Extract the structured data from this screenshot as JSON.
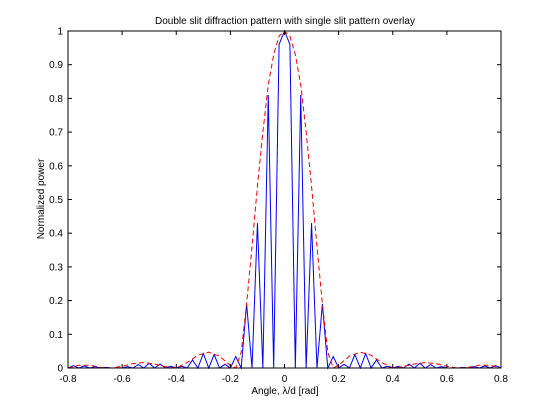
{
  "chart_data": {
    "type": "line",
    "title": "Double slit diffraction pattern with single slit pattern overlay",
    "xlabel": "Angle, λ/d [rad]",
    "ylabel": "Normalized power",
    "xlim": [
      -0.8,
      0.8
    ],
    "ylim": [
      0,
      1
    ],
    "xticks": [
      -0.8,
      -0.6,
      -0.4,
      -0.2,
      0,
      0.2,
      0.4,
      0.6,
      0.8
    ],
    "yticks": [
      0,
      0.1,
      0.2,
      0.3,
      0.4,
      0.5,
      0.6,
      0.7,
      0.8,
      0.9,
      1
    ],
    "xtick_labels": [
      "-0.8",
      "-0.6",
      "-0.4",
      "-0.2",
      "0",
      "0.2",
      "0.4",
      "0.6",
      "0.8"
    ],
    "ytick_labels": [
      "0",
      "0.1",
      "0.2",
      "0.3",
      "0.4",
      "0.5",
      "0.6",
      "0.7",
      "0.8",
      "0.9",
      "1"
    ],
    "grid": false,
    "legend": "none",
    "series": [
      {
        "style": "solid",
        "color": "#0000ff",
        "x": [
          -0.8,
          -0.78,
          -0.76,
          -0.74,
          -0.72,
          -0.7,
          -0.68,
          -0.66,
          -0.64,
          -0.62,
          -0.6,
          -0.58,
          -0.56,
          -0.54,
          -0.52,
          -0.5,
          -0.48,
          -0.46,
          -0.44,
          -0.42,
          -0.4,
          -0.38,
          -0.36,
          -0.34,
          -0.32,
          -0.3,
          -0.28,
          -0.26,
          -0.24,
          -0.22,
          -0.2,
          -0.18,
          -0.16,
          -0.14,
          -0.12,
          -0.1,
          -0.08,
          -0.06,
          -0.04,
          -0.02,
          0.0,
          0.02,
          0.04,
          0.06,
          0.08,
          0.1,
          0.12,
          0.14,
          0.16,
          0.18,
          0.2,
          0.22,
          0.24,
          0.26,
          0.28,
          0.3,
          0.32,
          0.34,
          0.36,
          0.38,
          0.4,
          0.42,
          0.44,
          0.46,
          0.48,
          0.5,
          0.52,
          0.54,
          0.56,
          0.58,
          0.6,
          0.62,
          0.64,
          0.66,
          0.68,
          0.7,
          0.72,
          0.74,
          0.76,
          0.78,
          0.8
        ],
        "y": [
          0.0,
          0.007,
          0.0,
          0.006,
          0.0,
          0.004,
          0.0,
          0.002,
          0.0,
          0.0,
          0.0,
          0.004,
          0.0,
          0.01,
          0.0,
          0.014,
          0.0,
          0.012,
          0.0,
          0.005,
          0.0,
          0.005,
          0.0,
          0.024,
          0.0,
          0.043,
          0.0,
          0.04,
          0.0,
          0.011,
          0.0,
          0.034,
          0.0,
          0.19,
          0.0,
          0.43,
          0.0,
          0.81,
          0.0,
          0.96,
          1.0,
          0.96,
          0.0,
          0.81,
          0.0,
          0.43,
          0.0,
          0.19,
          0.0,
          0.034,
          0.0,
          0.011,
          0.0,
          0.04,
          0.0,
          0.043,
          0.0,
          0.024,
          0.0,
          0.005,
          0.0,
          0.005,
          0.0,
          0.012,
          0.0,
          0.014,
          0.0,
          0.01,
          0.0,
          0.004,
          0.0,
          0.0,
          0.0,
          0.002,
          0.0,
          0.004,
          0.0,
          0.006,
          0.0,
          0.007,
          0.0
        ]
      },
      {
        "style": "dashed",
        "color": "#ff0000",
        "x": [
          -0.8,
          -0.76,
          -0.72,
          -0.68,
          -0.64,
          -0.6,
          -0.56,
          -0.52,
          -0.48,
          -0.44,
          -0.4,
          -0.36,
          -0.32,
          -0.28,
          -0.24,
          -0.2,
          -0.18,
          -0.16,
          -0.14,
          -0.12,
          -0.1,
          -0.08,
          -0.06,
          -0.04,
          -0.02,
          0.0,
          0.02,
          0.04,
          0.06,
          0.08,
          0.1,
          0.12,
          0.14,
          0.16,
          0.18,
          0.2,
          0.24,
          0.28,
          0.32,
          0.36,
          0.4,
          0.44,
          0.48,
          0.52,
          0.56,
          0.6,
          0.64,
          0.68,
          0.72,
          0.76,
          0.8
        ],
        "y": [
          0.0,
          0.008,
          0.008,
          0.002,
          0.0,
          0.005,
          0.013,
          0.016,
          0.012,
          0.004,
          0.0,
          0.016,
          0.038,
          0.047,
          0.035,
          0.008,
          0.0,
          0.047,
          0.19,
          0.36,
          0.54,
          0.7,
          0.84,
          0.93,
          0.985,
          1.0,
          0.985,
          0.93,
          0.84,
          0.7,
          0.54,
          0.36,
          0.19,
          0.047,
          0.0,
          0.008,
          0.035,
          0.047,
          0.038,
          0.016,
          0.0,
          0.004,
          0.012,
          0.016,
          0.013,
          0.005,
          0.0,
          0.002,
          0.008,
          0.008,
          0.0
        ]
      }
    ]
  }
}
